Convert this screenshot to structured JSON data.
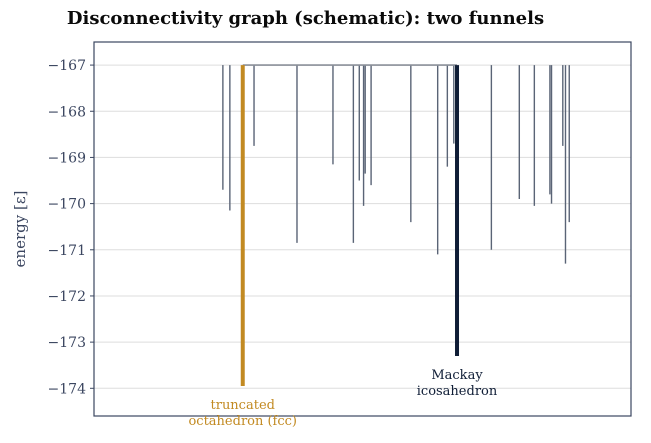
{
  "chart_data": {
    "type": "disconnectivity",
    "title": "Disconnectivity graph (schematic): two funnels",
    "ylabel": "energy",
    "ylabel_unit": "[ε]",
    "ylim": [
      -174.6,
      -166.5
    ],
    "yticks": [
      -167,
      -168,
      -169,
      -170,
      -171,
      -172,
      -173,
      -174
    ],
    "ytick_labels": [
      "−167",
      "−168",
      "−169",
      "−170",
      "−171",
      "−172",
      "−173",
      "−174"
    ],
    "grid": true,
    "connector_energy": -167.0,
    "colors": {
      "minima": "#5a6476",
      "fcc": "#c28a22",
      "ico": "#0f1d36",
      "connector": "#8a8f98",
      "frame": "#3b4660",
      "grid": "#dddddd"
    },
    "minima": [
      {
        "x": 0.24,
        "energy": -169.7
      },
      {
        "x": 0.253,
        "energy": -170.15
      },
      {
        "x": 0.298,
        "energy": -168.75
      },
      {
        "x": 0.378,
        "energy": -170.85
      },
      {
        "x": 0.445,
        "energy": -169.15
      },
      {
        "x": 0.483,
        "energy": -170.85
      },
      {
        "x": 0.494,
        "energy": -169.5
      },
      {
        "x": 0.502,
        "energy": -170.05
      },
      {
        "x": 0.505,
        "energy": -169.35
      },
      {
        "x": 0.516,
        "energy": -169.6
      },
      {
        "x": 0.59,
        "energy": -170.4
      },
      {
        "x": 0.64,
        "energy": -171.1
      },
      {
        "x": 0.658,
        "energy": -169.2
      },
      {
        "x": 0.67,
        "energy": -168.7
      },
      {
        "x": 0.74,
        "energy": -171.0
      },
      {
        "x": 0.792,
        "energy": -169.9
      },
      {
        "x": 0.82,
        "energy": -170.05
      },
      {
        "x": 0.849,
        "energy": -169.8
      },
      {
        "x": 0.852,
        "energy": -170.0
      },
      {
        "x": 0.873,
        "energy": -168.75
      },
      {
        "x": 0.878,
        "energy": -171.3
      },
      {
        "x": 0.885,
        "energy": -170.4
      }
    ],
    "funnels": [
      {
        "name": "truncated octahedron (fcc)",
        "label_lines": [
          "truncated",
          "octahedron (fcc)"
        ],
        "x": 0.277,
        "energy": -173.95,
        "color": "#c28a22"
      },
      {
        "name": "Mackay icosahedron",
        "label_lines": [
          "Mackay",
          "icosahedron"
        ],
        "x": 0.676,
        "energy": -173.3,
        "color": "#0f1d36"
      }
    ]
  }
}
